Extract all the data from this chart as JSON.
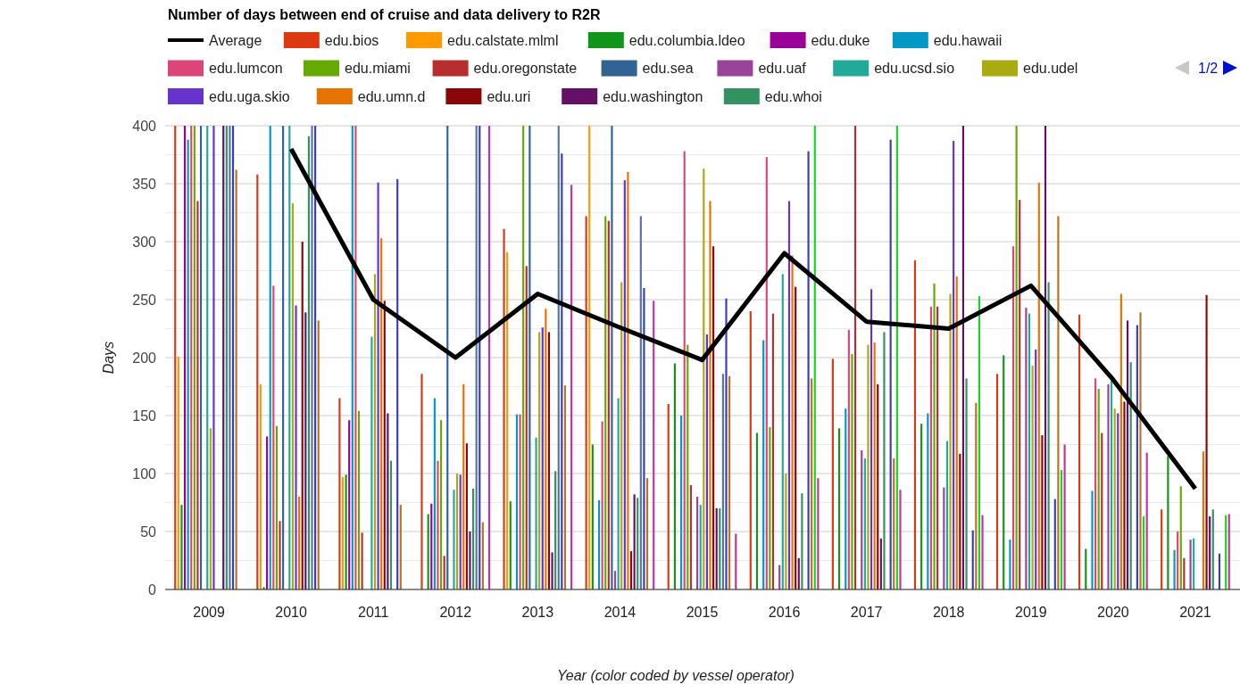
{
  "chart_data": {
    "type": "bar",
    "title": "Number of days between end of cruise and data delivery to R2R",
    "xlabel": "Year (color coded by vessel operator)",
    "ylabel": "Days",
    "categories": [
      "2009",
      "2010",
      "2011",
      "2012",
      "2013",
      "2014",
      "2015",
      "2016",
      "2017",
      "2018",
      "2019",
      "2020",
      "2021"
    ],
    "ylim": [
      0,
      400
    ],
    "yticks": [
      0,
      {
        "value": 25,
        "label": null
      },
      50,
      {
        "value": 75,
        "label": null
      },
      100,
      {
        "value": 125,
        "label": null
      },
      150,
      {
        "value": 175,
        "label": null
      },
      200,
      {
        "value": 225,
        "label": null
      },
      250,
      {
        "value": 275,
        "label": null
      },
      300,
      {
        "value": 325,
        "label": null
      },
      350,
      {
        "value": 375,
        "label": null
      },
      400
    ],
    "grid": "y",
    "legend": "top",
    "annotations": [
      "1/2"
    ],
    "series": [
      {
        "name": "Average",
        "type": "line",
        "color": "#000000",
        "values": [
          null,
          380,
          250,
          200,
          255,
          226,
          198,
          290,
          231,
          225,
          262,
          181,
          87
        ]
      },
      {
        "name": "edu.bios",
        "color": "#dc3912",
        "values": [
          400,
          358,
          165,
          186,
          311,
          322,
          160,
          240,
          199,
          284,
          186,
          237,
          69
        ]
      },
      {
        "name": "edu.calstate.mlml",
        "color": "#ff9900",
        "values": [
          201,
          177,
          97,
          null,
          291,
          400,
          null,
          null,
          null,
          null,
          null,
          null,
          null
        ]
      },
      {
        "name": "edu.columbia.ldeo",
        "color": "#109618",
        "values": [
          73,
          2,
          99,
          65,
          76,
          125,
          195,
          135,
          139,
          143,
          202,
          35,
          115
        ]
      },
      {
        "name": "edu.duke",
        "color": "#990099",
        "values": [
          400,
          132,
          146,
          74,
          null,
          null,
          null,
          null,
          null,
          null,
          null,
          null,
          null
        ]
      },
      {
        "name": "edu.hawaii",
        "color": "#0099c6",
        "values": [
          388,
          400,
          400,
          165,
          151,
          77,
          150,
          215,
          156,
          152,
          43,
          85,
          34
        ]
      },
      {
        "name": "edu.lumcon",
        "color": "#dd4477",
        "values": [
          400,
          262,
          400,
          111,
          151,
          145,
          378,
          373,
          224,
          244,
          296,
          182,
          50
        ]
      },
      {
        "name": "edu.miami",
        "color": "#66aa00",
        "values": [
          400,
          141,
          154,
          146,
          400,
          322,
          211,
          140,
          203,
          264,
          400,
          173,
          89
        ]
      },
      {
        "name": "edu.oregonstate",
        "color": "#b82e2e",
        "values": [
          335,
          59,
          49,
          29,
          279,
          318,
          90,
          238,
          400,
          244,
          336,
          135,
          27
        ]
      },
      {
        "name": "edu.sea",
        "color": "#316395",
        "values": [
          400,
          400,
          null,
          400,
          400,
          400,
          null,
          null,
          null,
          null,
          null,
          null,
          null
        ]
      },
      {
        "name": "edu.uaf",
        "color": "#994499",
        "values": [
          null,
          null,
          null,
          null,
          null,
          16,
          80,
          21,
          120,
          88,
          243,
          177,
          43
        ]
      },
      {
        "name": "edu.ucsd.sio",
        "color": "#22aa99",
        "values": [
          400,
          400,
          218,
          86,
          131,
          165,
          73,
          272,
          113,
          128,
          238,
          182,
          44
        ]
      },
      {
        "name": "edu.udel",
        "color": "#aaaa11",
        "values": [
          139,
          333,
          272,
          100,
          222,
          265,
          363,
          100,
          211,
          255,
          193,
          156,
          null
        ]
      },
      {
        "name": "edu.uga.skio",
        "color": "#6633cc",
        "values": [
          400,
          245,
          351,
          99,
          226,
          353,
          220,
          335,
          259,
          387,
          207,
          152,
          null
        ]
      },
      {
        "name": "edu.umn.d",
        "color": "#e67300",
        "values": [
          null,
          80,
          303,
          177,
          242,
          360,
          335,
          288,
          213,
          270,
          351,
          255,
          119
        ]
      },
      {
        "name": "edu.uri",
        "color": "#8b0707",
        "values": [
          null,
          300,
          249,
          126,
          222,
          33,
          296,
          261,
          177,
          117,
          133,
          162,
          254
        ]
      },
      {
        "name": "edu.washington",
        "color": "#651067",
        "values": [
          400,
          239,
          152,
          50,
          32,
          82,
          70,
          27,
          44,
          400,
          400,
          232,
          63
        ]
      },
      {
        "name": "edu.whoi",
        "color": "#329262",
        "values": [
          400,
          391,
          111,
          87,
          102,
          79,
          70,
          83,
          222,
          182,
          265,
          196,
          69
        ]
      },
      {
        "color": "#5574a6",
        "values": [
          400,
          400,
          null,
          400,
          400,
          322,
          186,
          null,
          null,
          null,
          null,
          null,
          null
        ]
      },
      {
        "color": "#3b3eac",
        "values": [
          400,
          400,
          354,
          400,
          376,
          260,
          251,
          378,
          388,
          51,
          78,
          228,
          31
        ]
      },
      {
        "color": "#b77322",
        "values": [
          362,
          232,
          73,
          58,
          176,
          96,
          184,
          182,
          113,
          161,
          322,
          239,
          null
        ]
      },
      {
        "color": "#16d620",
        "values": [
          null,
          null,
          null,
          null,
          null,
          null,
          null,
          400,
          400,
          253,
          103,
          63,
          64
        ]
      },
      {
        "color": "#c9309b",
        "values": [
          null,
          null,
          null,
          400,
          349,
          249,
          48,
          96,
          86,
          64,
          125,
          118,
          65
        ]
      }
    ]
  }
}
